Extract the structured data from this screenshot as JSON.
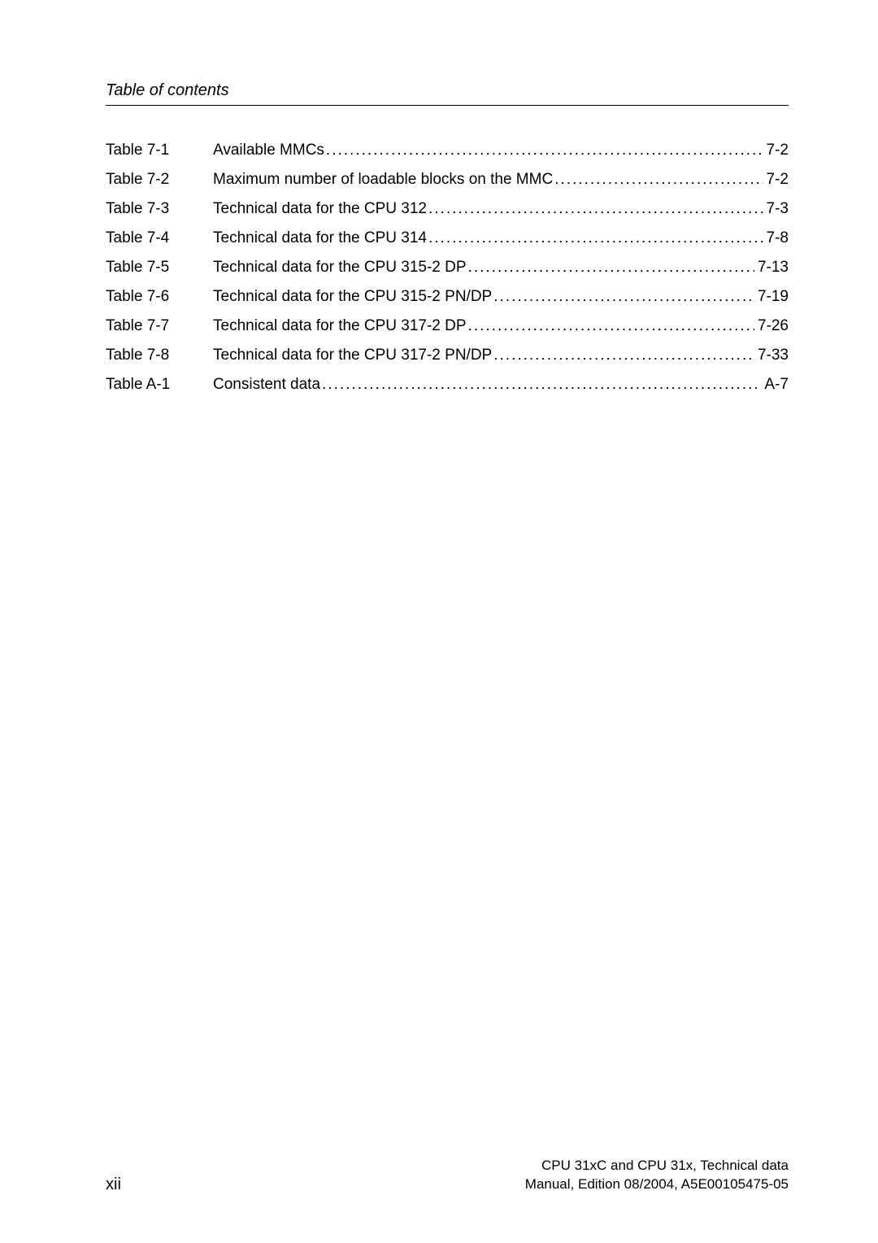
{
  "header": {
    "title": "Table of contents"
  },
  "toc": {
    "entries": [
      {
        "label": "Table 7-1",
        "title": "Available MMCs ",
        "page": " 7-2"
      },
      {
        "label": "Table 7-2",
        "title": "Maximum number of loadable blocks on the MMC",
        "page": " 7-2"
      },
      {
        "label": "Table 7-3",
        "title": "Technical data for the CPU 312",
        "page": " 7-3"
      },
      {
        "label": "Table 7-4",
        "title": "Technical data for the CPU 314",
        "page": " 7-8"
      },
      {
        "label": "Table 7-5",
        "title": "Technical data for the CPU 315-2 DP",
        "page": " 7-13"
      },
      {
        "label": "Table 7-6",
        "title": "Technical data for the CPU 315-2 PN/DP",
        "page": " 7-19"
      },
      {
        "label": "Table 7-7",
        "title": "Technical data for the CPU 317-2 DP",
        "page": " 7-26"
      },
      {
        "label": "Table 7-8",
        "title": "Technical data for the CPU 317-2 PN/DP",
        "page": " 7-33"
      },
      {
        "label": "Table A-1",
        "title": "Consistent data ",
        "page": "A-7"
      }
    ]
  },
  "footer": {
    "page_number": "xii",
    "line1": "CPU 31xC and CPU 31x, Technical data",
    "line2": "Manual, Edition 08/2004, A5E00105475-05"
  }
}
